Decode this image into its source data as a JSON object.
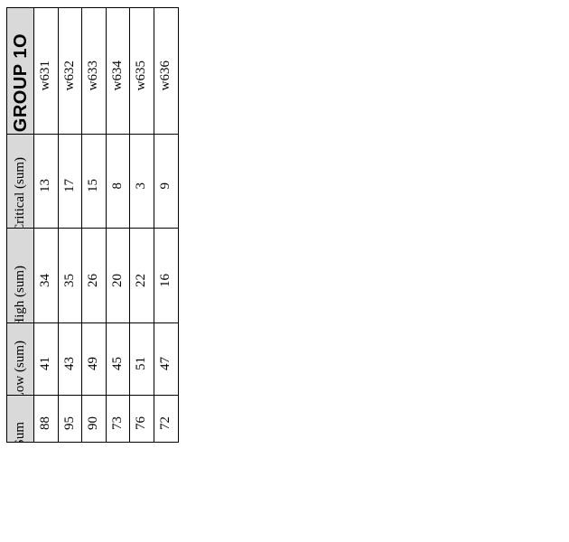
{
  "table": {
    "title": "GROUP 1O",
    "row_labels": [
      "w631",
      "w632",
      "w633",
      "w634",
      "w635",
      "w636"
    ],
    "sections": [
      {
        "header": "Critical (sum)",
        "values": [
          "13",
          "17",
          "15",
          "8",
          "3",
          "9"
        ]
      },
      {
        "header": "High (sum)",
        "values": [
          "34",
          "35",
          "26",
          "20",
          "22",
          "16"
        ]
      },
      {
        "header": "Low (sum)",
        "values": [
          "41",
          "43",
          "49",
          "45",
          "51",
          "47"
        ]
      },
      {
        "header": "Sum",
        "values": [
          "88",
          "95",
          "90",
          "73",
          "76",
          "72"
        ]
      }
    ]
  },
  "colors": {
    "header_background": "#d9d9d9",
    "border": "#000000",
    "page_background": "#ffffff",
    "text": "#000000"
  }
}
